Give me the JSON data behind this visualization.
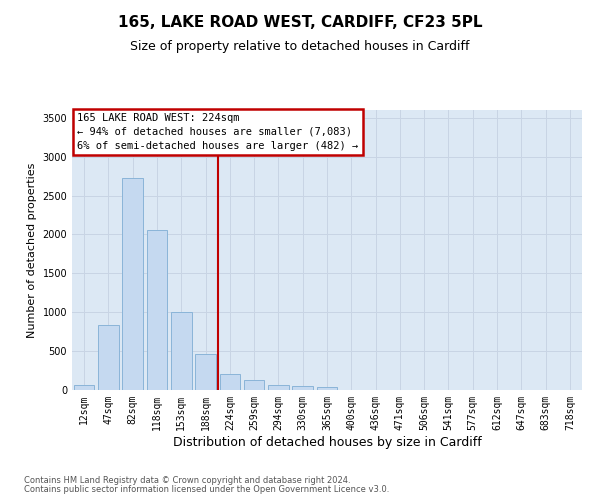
{
  "title1": "165, LAKE ROAD WEST, CARDIFF, CF23 5PL",
  "title2": "Size of property relative to detached houses in Cardiff",
  "xlabel": "Distribution of detached houses by size in Cardiff",
  "ylabel": "Number of detached properties",
  "categories": [
    "12sqm",
    "47sqm",
    "82sqm",
    "118sqm",
    "153sqm",
    "188sqm",
    "224sqm",
    "259sqm",
    "294sqm",
    "330sqm",
    "365sqm",
    "400sqm",
    "436sqm",
    "471sqm",
    "506sqm",
    "541sqm",
    "577sqm",
    "612sqm",
    "647sqm",
    "683sqm",
    "718sqm"
  ],
  "values": [
    60,
    840,
    2720,
    2060,
    1000,
    460,
    200,
    130,
    70,
    55,
    40,
    0,
    0,
    0,
    0,
    0,
    0,
    0,
    0,
    0,
    0
  ],
  "bar_color": "#c5d9f0",
  "bar_edge_color": "#8ab4d8",
  "vline_color": "#c00000",
  "annotation_text": "165 LAKE ROAD WEST: 224sqm\n← 94% of detached houses are smaller (7,083)\n6% of semi-detached houses are larger (482) →",
  "annotation_box_facecolor": "#ffffff",
  "annotation_box_edgecolor": "#c00000",
  "ylim_max": 3600,
  "yticks": [
    0,
    500,
    1000,
    1500,
    2000,
    2500,
    3000,
    3500
  ],
  "grid_color": "#c8d4e4",
  "bg_color": "#dce8f4",
  "footer1": "Contains HM Land Registry data © Crown copyright and database right 2024.",
  "footer2": "Contains public sector information licensed under the Open Government Licence v3.0.",
  "title1_fontsize": 11,
  "title2_fontsize": 9,
  "annot_fontsize": 7.5,
  "tick_fontsize": 7,
  "ylabel_fontsize": 8,
  "xlabel_fontsize": 9
}
